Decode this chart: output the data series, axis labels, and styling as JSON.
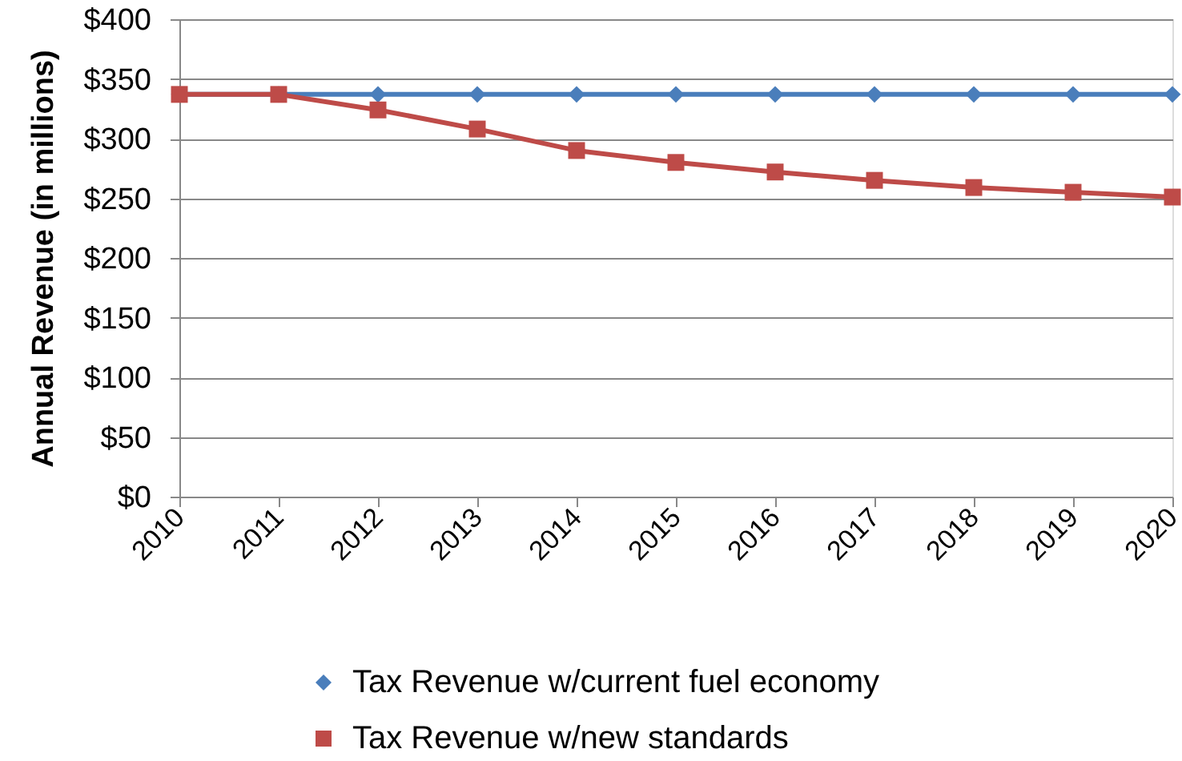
{
  "chart_data": {
    "type": "line",
    "ylabel": "Annual Revenue (in millions)",
    "categories": [
      "2010",
      "2011",
      "2012",
      "2013",
      "2014",
      "2015",
      "2016",
      "2017",
      "2018",
      "2019",
      "2020"
    ],
    "series": [
      {
        "name": "Tax Revenue w/current fuel economy",
        "color": "#4a7ebb",
        "marker": "diamond",
        "values": [
          337,
          337,
          337,
          337,
          337,
          337,
          337,
          337,
          337,
          337,
          337
        ]
      },
      {
        "name": "Tax Revenue w/new standards",
        "color": "#be4b48",
        "marker": "square",
        "values": [
          337,
          337,
          324,
          308,
          290,
          280,
          272,
          265,
          259,
          255,
          251
        ]
      }
    ],
    "ylim": [
      0,
      400
    ],
    "yticks": [
      {
        "value": 0,
        "label": "$0"
      },
      {
        "value": 50,
        "label": "$50"
      },
      {
        "value": 100,
        "label": "$100"
      },
      {
        "value": 150,
        "label": "$150"
      },
      {
        "value": 200,
        "label": "$200"
      },
      {
        "value": 250,
        "label": "$250"
      },
      {
        "value": 300,
        "label": "$300"
      },
      {
        "value": 350,
        "label": "$350"
      },
      {
        "value": 400,
        "label": "$400"
      }
    ],
    "grid": "y",
    "legend": "bottom",
    "line_style": "solid"
  }
}
